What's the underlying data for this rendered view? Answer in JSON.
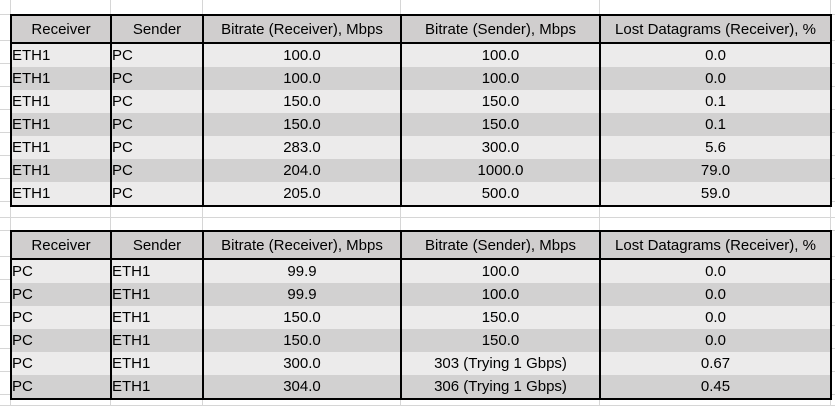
{
  "colors": {
    "header_bg": "#d0cece",
    "row_light": "#ecebeb",
    "row_dark": "#d2d1d1",
    "border": "#000000",
    "gridline": "#d6d6d6"
  },
  "tables": [
    {
      "name": "eth1-receiver-results",
      "headers": [
        "Receiver",
        "Sender",
        "Bitrate (Receiver), Mbps",
        "Bitrate (Sender), Mbps",
        "Lost Datagrams (Receiver), %"
      ],
      "column_alignments": [
        "left",
        "left",
        "center",
        "center",
        "center"
      ],
      "rows": [
        [
          "ETH1",
          "PC",
          "100.0",
          "100.0",
          "0.0"
        ],
        [
          "ETH1",
          "PC",
          "100.0",
          "100.0",
          "0.0"
        ],
        [
          "ETH1",
          "PC",
          "150.0",
          "150.0",
          "0.1"
        ],
        [
          "ETH1",
          "PC",
          "150.0",
          "150.0",
          "0.1"
        ],
        [
          "ETH1",
          "PC",
          "283.0",
          "300.0",
          "5.6"
        ],
        [
          "ETH1",
          "PC",
          "204.0",
          "1000.0",
          "79.0"
        ],
        [
          "ETH1",
          "PC",
          "205.0",
          "500.0",
          "59.0"
        ]
      ]
    },
    {
      "name": "pc-receiver-results",
      "headers": [
        "Receiver",
        "Sender",
        "Bitrate (Receiver), Mbps",
        "Bitrate (Sender), Mbps",
        "Lost Datagrams (Receiver), %"
      ],
      "column_alignments": [
        "left",
        "left",
        "center",
        "center",
        "center"
      ],
      "rows": [
        [
          "PC",
          "ETH1",
          "99.9",
          "100.0",
          "0.0"
        ],
        [
          "PC",
          "ETH1",
          "99.9",
          "100.0",
          "0.0"
        ],
        [
          "PC",
          "ETH1",
          "150.0",
          "150.0",
          "0.0"
        ],
        [
          "PC",
          "ETH1",
          "150.0",
          "150.0",
          "0.0"
        ],
        [
          "PC",
          "ETH1",
          "300.0",
          "303 (Trying 1 Gbps)",
          "0.67"
        ],
        [
          "PC",
          "ETH1",
          "304.0",
          "306 (Trying 1 Gbps)",
          "0.45"
        ]
      ]
    }
  ]
}
